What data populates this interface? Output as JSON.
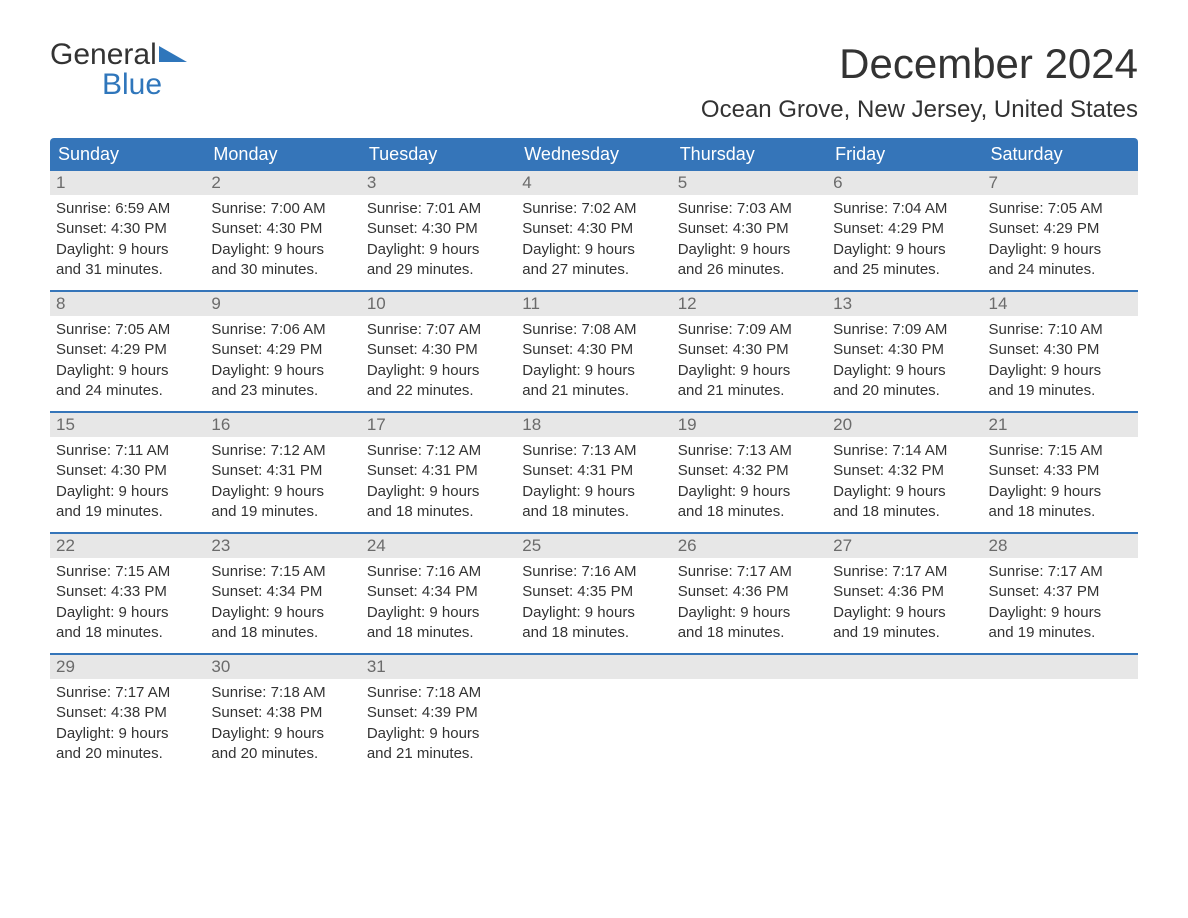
{
  "brand": {
    "general": "General",
    "blue": "Blue"
  },
  "title": "December 2024",
  "location": "Ocean Grove, New Jersey, United States",
  "colors": {
    "header_bg": "#3575b9",
    "header_text": "#ffffff",
    "daynum_bg": "#e7e7e7",
    "daynum_text": "#6b6b6b",
    "border": "#3575b9",
    "body_text": "#333333",
    "logo_blue": "#2f76bb",
    "page_bg": "#ffffff"
  },
  "day_headers": [
    "Sunday",
    "Monday",
    "Tuesday",
    "Wednesday",
    "Thursday",
    "Friday",
    "Saturday"
  ],
  "weeks": [
    [
      {
        "num": "1",
        "sunrise": "Sunrise: 6:59 AM",
        "sunset": "Sunset: 4:30 PM",
        "daylight1": "Daylight: 9 hours",
        "daylight2": "and 31 minutes."
      },
      {
        "num": "2",
        "sunrise": "Sunrise: 7:00 AM",
        "sunset": "Sunset: 4:30 PM",
        "daylight1": "Daylight: 9 hours",
        "daylight2": "and 30 minutes."
      },
      {
        "num": "3",
        "sunrise": "Sunrise: 7:01 AM",
        "sunset": "Sunset: 4:30 PM",
        "daylight1": "Daylight: 9 hours",
        "daylight2": "and 29 minutes."
      },
      {
        "num": "4",
        "sunrise": "Sunrise: 7:02 AM",
        "sunset": "Sunset: 4:30 PM",
        "daylight1": "Daylight: 9 hours",
        "daylight2": "and 27 minutes."
      },
      {
        "num": "5",
        "sunrise": "Sunrise: 7:03 AM",
        "sunset": "Sunset: 4:30 PM",
        "daylight1": "Daylight: 9 hours",
        "daylight2": "and 26 minutes."
      },
      {
        "num": "6",
        "sunrise": "Sunrise: 7:04 AM",
        "sunset": "Sunset: 4:29 PM",
        "daylight1": "Daylight: 9 hours",
        "daylight2": "and 25 minutes."
      },
      {
        "num": "7",
        "sunrise": "Sunrise: 7:05 AM",
        "sunset": "Sunset: 4:29 PM",
        "daylight1": "Daylight: 9 hours",
        "daylight2": "and 24 minutes."
      }
    ],
    [
      {
        "num": "8",
        "sunrise": "Sunrise: 7:05 AM",
        "sunset": "Sunset: 4:29 PM",
        "daylight1": "Daylight: 9 hours",
        "daylight2": "and 24 minutes."
      },
      {
        "num": "9",
        "sunrise": "Sunrise: 7:06 AM",
        "sunset": "Sunset: 4:29 PM",
        "daylight1": "Daylight: 9 hours",
        "daylight2": "and 23 minutes."
      },
      {
        "num": "10",
        "sunrise": "Sunrise: 7:07 AM",
        "sunset": "Sunset: 4:30 PM",
        "daylight1": "Daylight: 9 hours",
        "daylight2": "and 22 minutes."
      },
      {
        "num": "11",
        "sunrise": "Sunrise: 7:08 AM",
        "sunset": "Sunset: 4:30 PM",
        "daylight1": "Daylight: 9 hours",
        "daylight2": "and 21 minutes."
      },
      {
        "num": "12",
        "sunrise": "Sunrise: 7:09 AM",
        "sunset": "Sunset: 4:30 PM",
        "daylight1": "Daylight: 9 hours",
        "daylight2": "and 21 minutes."
      },
      {
        "num": "13",
        "sunrise": "Sunrise: 7:09 AM",
        "sunset": "Sunset: 4:30 PM",
        "daylight1": "Daylight: 9 hours",
        "daylight2": "and 20 minutes."
      },
      {
        "num": "14",
        "sunrise": "Sunrise: 7:10 AM",
        "sunset": "Sunset: 4:30 PM",
        "daylight1": "Daylight: 9 hours",
        "daylight2": "and 19 minutes."
      }
    ],
    [
      {
        "num": "15",
        "sunrise": "Sunrise: 7:11 AM",
        "sunset": "Sunset: 4:30 PM",
        "daylight1": "Daylight: 9 hours",
        "daylight2": "and 19 minutes."
      },
      {
        "num": "16",
        "sunrise": "Sunrise: 7:12 AM",
        "sunset": "Sunset: 4:31 PM",
        "daylight1": "Daylight: 9 hours",
        "daylight2": "and 19 minutes."
      },
      {
        "num": "17",
        "sunrise": "Sunrise: 7:12 AM",
        "sunset": "Sunset: 4:31 PM",
        "daylight1": "Daylight: 9 hours",
        "daylight2": "and 18 minutes."
      },
      {
        "num": "18",
        "sunrise": "Sunrise: 7:13 AM",
        "sunset": "Sunset: 4:31 PM",
        "daylight1": "Daylight: 9 hours",
        "daylight2": "and 18 minutes."
      },
      {
        "num": "19",
        "sunrise": "Sunrise: 7:13 AM",
        "sunset": "Sunset: 4:32 PM",
        "daylight1": "Daylight: 9 hours",
        "daylight2": "and 18 minutes."
      },
      {
        "num": "20",
        "sunrise": "Sunrise: 7:14 AM",
        "sunset": "Sunset: 4:32 PM",
        "daylight1": "Daylight: 9 hours",
        "daylight2": "and 18 minutes."
      },
      {
        "num": "21",
        "sunrise": "Sunrise: 7:15 AM",
        "sunset": "Sunset: 4:33 PM",
        "daylight1": "Daylight: 9 hours",
        "daylight2": "and 18 minutes."
      }
    ],
    [
      {
        "num": "22",
        "sunrise": "Sunrise: 7:15 AM",
        "sunset": "Sunset: 4:33 PM",
        "daylight1": "Daylight: 9 hours",
        "daylight2": "and 18 minutes."
      },
      {
        "num": "23",
        "sunrise": "Sunrise: 7:15 AM",
        "sunset": "Sunset: 4:34 PM",
        "daylight1": "Daylight: 9 hours",
        "daylight2": "and 18 minutes."
      },
      {
        "num": "24",
        "sunrise": "Sunrise: 7:16 AM",
        "sunset": "Sunset: 4:34 PM",
        "daylight1": "Daylight: 9 hours",
        "daylight2": "and 18 minutes."
      },
      {
        "num": "25",
        "sunrise": "Sunrise: 7:16 AM",
        "sunset": "Sunset: 4:35 PM",
        "daylight1": "Daylight: 9 hours",
        "daylight2": "and 18 minutes."
      },
      {
        "num": "26",
        "sunrise": "Sunrise: 7:17 AM",
        "sunset": "Sunset: 4:36 PM",
        "daylight1": "Daylight: 9 hours",
        "daylight2": "and 18 minutes."
      },
      {
        "num": "27",
        "sunrise": "Sunrise: 7:17 AM",
        "sunset": "Sunset: 4:36 PM",
        "daylight1": "Daylight: 9 hours",
        "daylight2": "and 19 minutes."
      },
      {
        "num": "28",
        "sunrise": "Sunrise: 7:17 AM",
        "sunset": "Sunset: 4:37 PM",
        "daylight1": "Daylight: 9 hours",
        "daylight2": "and 19 minutes."
      }
    ],
    [
      {
        "num": "29",
        "sunrise": "Sunrise: 7:17 AM",
        "sunset": "Sunset: 4:38 PM",
        "daylight1": "Daylight: 9 hours",
        "daylight2": "and 20 minutes."
      },
      {
        "num": "30",
        "sunrise": "Sunrise: 7:18 AM",
        "sunset": "Sunset: 4:38 PM",
        "daylight1": "Daylight: 9 hours",
        "daylight2": "and 20 minutes."
      },
      {
        "num": "31",
        "sunrise": "Sunrise: 7:18 AM",
        "sunset": "Sunset: 4:39 PM",
        "daylight1": "Daylight: 9 hours",
        "daylight2": "and 21 minutes."
      },
      {
        "empty": true
      },
      {
        "empty": true
      },
      {
        "empty": true
      },
      {
        "empty": true
      }
    ]
  ]
}
